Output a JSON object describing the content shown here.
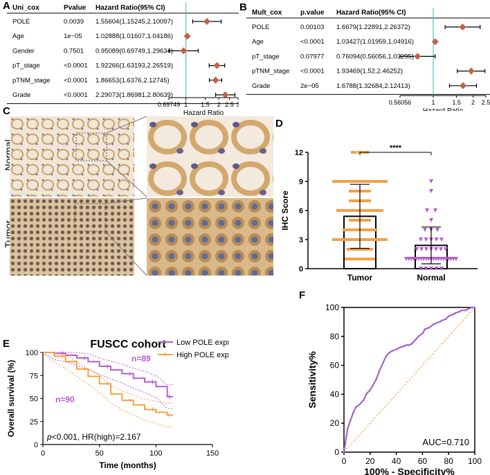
{
  "panel_labels": {
    "a": "A",
    "b": "B",
    "c": "C",
    "d": "D",
    "e": "E",
    "f": "F"
  },
  "colors": {
    "forest_point": "#c0614a",
    "forest_line": "#55c1c6",
    "purple": "#b55bd4",
    "orange": "#f5a043",
    "ihc_tumor_bar": "#f5a043",
    "ihc_normal_bar": "#b55bd4",
    "roc": "#a267c9",
    "diag": "#f5a043"
  },
  "chart_data": [
    {
      "id": "forest_uni",
      "type": "forest",
      "headers": {
        "name": "Uni_cox",
        "p": "Pvalue",
        "hr": "Hazard Ratio(95% CI)"
      },
      "rows": [
        {
          "name": "POLE",
          "p": "0.0039",
          "hr_text": "1.55604(1.15245,2.10097)",
          "hr": 1.55604,
          "lo": 1.15245,
          "hi": 2.10097
        },
        {
          "name": "Age",
          "p": "1e−05",
          "hr_text": "1.02888(1.01607,1.04186)",
          "hr": 1.02888,
          "lo": 1.01607,
          "hi": 1.04186
        },
        {
          "name": "Gender",
          "p": "0.7501",
          "hr_text": "0.95089(0.69749,1.29634)",
          "hr": 0.95089,
          "lo": 0.69749,
          "hi": 1.29634
        },
        {
          "name": "pT_stage",
          "p": "<0.0001",
          "hr_text": "1.92266(1.63193,2.26519)",
          "hr": 1.92266,
          "lo": 1.63193,
          "hi": 2.26519
        },
        {
          "name": "pTNM_stage",
          "p": "<0.0001",
          "hr_text": "1.86653(1.6376,2.12745)",
          "hr": 1.86653,
          "lo": 1.6376,
          "hi": 2.12745
        },
        {
          "name": "Grade",
          "p": "<0.0001",
          "hr_text": "2.29073(1.86981,2.80639)",
          "hr": 2.29073,
          "lo": 1.86981,
          "hi": 2.80639
        }
      ],
      "ticks": [
        "0.69749",
        "1",
        "1.5",
        "2",
        "2.5",
        "3"
      ],
      "tick_values": [
        0.69749,
        1,
        1.5,
        2,
        2.5,
        3
      ],
      "xlabel": "Hazard Ratio",
      "xlim": [
        0.69749,
        3
      ]
    },
    {
      "id": "forest_mult",
      "type": "forest",
      "headers": {
        "name": "Mult_cox",
        "p": "p.value",
        "hr": "Hazard Ratio(95% CI)"
      },
      "rows": [
        {
          "name": "POLE",
          "p": "0.00103",
          "hr_text": "1.6679(1.22891,2.26372)",
          "hr": 1.6679,
          "lo": 1.22891,
          "hi": 2.26372
        },
        {
          "name": "Age",
          "p": "<0.0001",
          "hr_text": "1.03427(1.01959,1.04916)",
          "hr": 1.03427,
          "lo": 1.01959,
          "hi": 1.04916
        },
        {
          "name": "pT_stage",
          "p": "0.07977",
          "hr_text": "0.76094(0.56056,1.03295)",
          "hr": 0.76094,
          "lo": 0.56056,
          "hi": 1.03295
        },
        {
          "name": "pTNM_stage",
          "p": "<0.0001",
          "hr_text": "1.93469(1.52,2.46252)",
          "hr": 1.93469,
          "lo": 1.52,
          "hi": 2.46252
        },
        {
          "name": "Grade",
          "p": "2e−05",
          "hr_text": "1.6788(1.32684,2.12413)",
          "hr": 1.6788,
          "lo": 1.32684,
          "hi": 2.12413
        }
      ],
      "ticks": [
        "0.56056",
        "1",
        "1.5",
        "2",
        "2.5"
      ],
      "tick_values": [
        0.56056,
        1,
        1.5,
        2,
        2.5
      ],
      "xlabel": "Hazard Ratio",
      "xlim": [
        0.56056,
        2.5
      ]
    },
    {
      "id": "ihc_images",
      "type": "image_grid",
      "row_labels": [
        "Normal",
        "Tumor"
      ]
    },
    {
      "id": "ihc_bar",
      "type": "bar",
      "categories": [
        "Tumor",
        "Normal"
      ],
      "values": [
        5.4,
        2.4
      ],
      "sd": [
        [
          2.1,
          8.7
        ],
        [
          0.5,
          4.3
        ]
      ],
      "ylabel": "IHC Score",
      "ylim": [
        0,
        12
      ],
      "yticks": [
        "0",
        "3",
        "6",
        "9",
        "12"
      ],
      "significance": "****",
      "tumor_points": [
        12,
        12,
        12,
        9,
        9,
        9,
        9,
        9,
        9,
        9,
        9,
        9,
        9,
        9,
        9,
        9,
        9,
        9,
        9,
        9,
        8,
        8,
        8,
        8,
        7,
        7,
        7,
        7,
        6,
        6,
        6,
        6,
        6,
        6,
        6,
        6,
        6,
        6,
        5,
        5,
        5,
        5,
        4,
        4,
        4,
        4,
        4,
        4,
        4,
        3,
        3,
        3,
        3,
        3,
        3,
        3,
        3,
        3,
        3,
        3,
        3,
        3,
        3,
        2,
        2,
        2,
        2,
        2,
        1,
        1,
        1,
        1,
        1,
        1
      ],
      "normal_points": [
        9,
        8,
        6,
        6,
        5,
        4,
        4,
        4,
        3,
        3,
        3,
        3,
        3,
        2,
        2,
        2,
        2,
        2,
        2,
        2,
        1,
        1,
        1,
        1,
        1,
        1,
        1,
        1,
        1,
        1,
        1,
        1,
        1,
        1,
        1,
        1,
        1,
        1,
        1,
        1,
        1,
        0,
        0,
        0,
        0,
        0
      ]
    },
    {
      "id": "km",
      "type": "line",
      "title": "FUSCC cohort",
      "xlabel": "Time (months)",
      "ylabel": "Overall survival (%)",
      "xlim": [
        0,
        150
      ],
      "ylim": [
        0,
        100
      ],
      "xticks": [
        "0",
        "50",
        "100",
        "150"
      ],
      "yticks": [
        "0",
        "25",
        "50",
        "75",
        "100"
      ],
      "legend": [
        "Low POLE expression",
        "High POLE expression"
      ],
      "n_low": "n=89",
      "n_high": "n=90",
      "annotation_p": "p",
      "annotation_rest": "<0.001, HR(high)=2.167",
      "series": [
        {
          "name": "Low POLE expression",
          "x": [
            0,
            10,
            20,
            30,
            40,
            50,
            60,
            70,
            80,
            90,
            100,
            110,
            115
          ],
          "y": [
            100,
            99,
            97,
            94,
            90,
            85,
            81,
            77,
            72,
            68,
            63,
            52,
            52
          ]
        },
        {
          "name": "High POLE expression",
          "x": [
            0,
            10,
            20,
            30,
            40,
            50,
            60,
            70,
            80,
            90,
            100,
            110,
            115
          ],
          "y": [
            100,
            96,
            90,
            82,
            74,
            66,
            55,
            48,
            43,
            38,
            35,
            32,
            32
          ]
        }
      ]
    },
    {
      "id": "roc",
      "type": "line",
      "xlabel": "100% - Specificity%",
      "ylabel": "Sensitivity%",
      "xlim": [
        0,
        100
      ],
      "ylim": [
        0,
        100
      ],
      "xticks": [
        "0",
        "20",
        "40",
        "60",
        "80",
        "100"
      ],
      "yticks": [
        "0",
        "20",
        "40",
        "60",
        "80",
        "100"
      ],
      "auc": "AUC=0.710",
      "x": [
        0,
        1,
        2,
        3,
        5,
        7,
        9,
        12,
        15,
        17,
        20,
        22,
        25,
        27,
        30,
        32,
        35,
        37,
        40,
        42,
        45,
        48,
        50,
        52,
        55,
        57,
        60,
        62,
        65,
        68,
        70,
        73,
        75,
        78,
        80,
        83,
        85,
        88,
        90,
        93,
        95,
        98,
        100
      ],
      "y": [
        0,
        6,
        12,
        17,
        22,
        27,
        31,
        33,
        36,
        40,
        43,
        46,
        51,
        56,
        62,
        66,
        69,
        70,
        71,
        72,
        73,
        74,
        74,
        75,
        78,
        80,
        82,
        85,
        86,
        88,
        89,
        90,
        91,
        92,
        94,
        95,
        96,
        97,
        98,
        98,
        99,
        100,
        100
      ]
    }
  ]
}
